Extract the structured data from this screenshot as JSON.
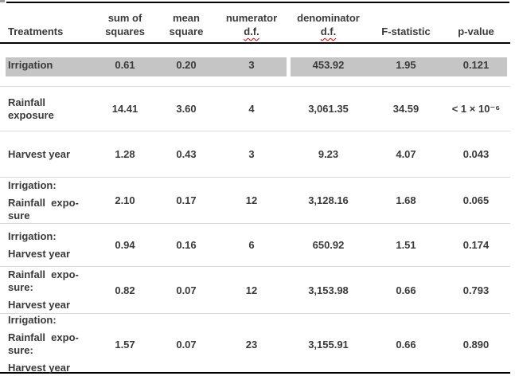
{
  "meta": {
    "colors": {
      "text": "#3a3a3a",
      "highlight_gray": "#c5c5c5",
      "separator_gray": "#d9d9d9",
      "rule_black": "#000000",
      "squiggle_red": "#e00000",
      "corner_gray": "#9b9b9b"
    }
  },
  "table": {
    "header": {
      "treatments": "Treatments",
      "cols": [
        {
          "line1": "sum of",
          "line2": "squares"
        },
        {
          "line1": "mean",
          "line2": "square"
        },
        {
          "line1": "numerator",
          "line2": "d.f."
        },
        {
          "line1": "denominator",
          "line2": "d.f."
        },
        {
          "line1": "",
          "line2": "F-statistic"
        },
        {
          "line1": "",
          "line2": "p-value"
        }
      ]
    },
    "rows": [
      {
        "treatment": [
          [
            "Irrigation"
          ]
        ],
        "sum_sq": "0.61",
        "mean_sq": "0.20",
        "num_df": "3",
        "den_df": "453.92",
        "f_stat": "1.95",
        "p_value": "0.121",
        "highlight": true
      },
      {
        "treatment": [
          [
            "Rainfall",
            "exposure"
          ]
        ],
        "sum_sq": "14.41",
        "mean_sq": "3.60",
        "num_df": "4",
        "den_df": "3,061.35",
        "f_stat": "34.59",
        "p_value": "< 1 × 10⁻⁶",
        "highlight": false
      },
      {
        "treatment": [
          [
            "Harvest year"
          ]
        ],
        "sum_sq": "1.28",
        "mean_sq": "0.43",
        "num_df": "3",
        "den_df": "9.23",
        "f_stat": "4.07",
        "p_value": "0.043",
        "highlight": false
      },
      {
        "treatment": [
          [
            "Irrigation:"
          ],
          [
            "Rainfall  expo-",
            "sure"
          ]
        ],
        "sum_sq": "2.10",
        "mean_sq": "0.17",
        "num_df": "12",
        "den_df": "3,128.16",
        "f_stat": "1.68",
        "p_value": "0.065",
        "highlight": false
      },
      {
        "treatment": [
          [
            "Irrigation:"
          ],
          [
            "Harvest year"
          ]
        ],
        "sum_sq": "0.94",
        "mean_sq": "0.16",
        "num_df": "6",
        "den_df": "650.92",
        "f_stat": "1.51",
        "p_value": "0.174",
        "highlight": false
      },
      {
        "treatment": [
          [
            "Rainfall  expo-",
            "sure:"
          ],
          [
            "Harvest year"
          ]
        ],
        "sum_sq": "0.82",
        "mean_sq": "0.07",
        "num_df": "12",
        "den_df": "3,153.98",
        "f_stat": "0.66",
        "p_value": "0.793",
        "highlight": false
      },
      {
        "treatment": [
          [
            "Irrigation:"
          ],
          [
            "Rainfall  expo-",
            "sure:"
          ],
          [
            "Harvest year"
          ]
        ],
        "sum_sq": "1.57",
        "mean_sq": "0.07",
        "num_df": "23",
        "den_df": "3,155.91",
        "f_stat": "0.66",
        "p_value": "0.890",
        "highlight": false
      }
    ]
  }
}
